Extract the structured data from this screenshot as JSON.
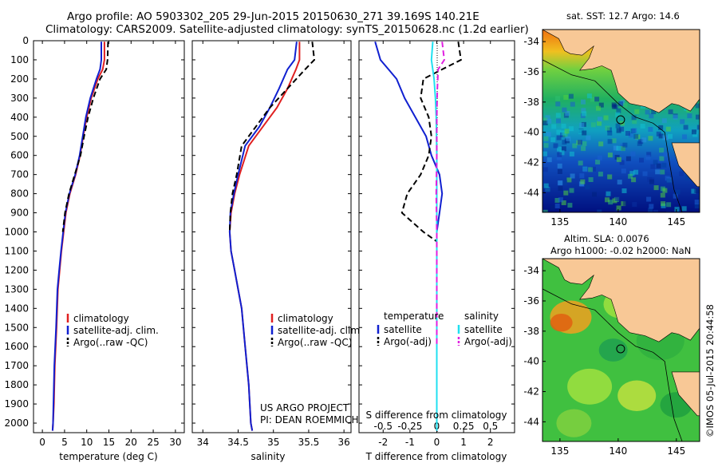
{
  "header": {
    "line1": "Argo profile: AO 5903302_205 29-Jun-2015 20150630_271 39.169S 140.21E",
    "line2": "Climatology: CARS2009. Satellite-adjusted climatology: synTS_20150628.nc (1.2d earlier)"
  },
  "credits": {
    "project": "US ARGO PROJECT",
    "pi": "PI: DEAN ROEMMICH",
    "watermark": "©IMOS 05-Jul-2015 20:44:58"
  },
  "colors": {
    "climatology": "#e02020",
    "satellite": "#1020d0",
    "argo": "#000000",
    "sal_satellite": "#20e0f0",
    "sal_argo": "#e020e0",
    "land": "#f8c896"
  },
  "chart_data": [
    {
      "type": "line",
      "name": "temperature",
      "xlabel": "temperature (deg C)",
      "ylabel": "",
      "xlim": [
        -2,
        32
      ],
      "ylim": [
        2050,
        0
      ],
      "xticks": [
        0,
        5,
        10,
        15,
        20,
        25,
        30
      ],
      "yticks": [
        0,
        100,
        200,
        300,
        400,
        500,
        600,
        700,
        800,
        900,
        1000,
        1100,
        1200,
        1300,
        1400,
        1500,
        1600,
        1700,
        1800,
        1900,
        2000
      ],
      "legend": [
        "climatology",
        "satellite-adj. clim.",
        "Argo(..raw -QC)"
      ],
      "legend_position": "lower-center",
      "series": [
        {
          "name": "climatology",
          "color": "red",
          "style": "solid",
          "x": [
            14.0,
            14.0,
            13.6,
            12.5,
            11.0,
            10.0,
            9.2,
            8.5,
            7.5,
            6.2,
            5.3,
            4.8,
            4.3,
            3.9,
            3.5,
            3.2,
            2.8,
            2.6,
            2.4,
            2.3
          ],
          "y": [
            5,
            100,
            150,
            200,
            300,
            400,
            500,
            600,
            700,
            800,
            900,
            1000,
            1100,
            1200,
            1300,
            1500,
            1700,
            1900,
            2000,
            2040
          ]
        },
        {
          "name": "satellite-adj. clim.",
          "color": "blue",
          "style": "solid",
          "x": [
            13.3,
            13.3,
            13.0,
            12.2,
            10.8,
            9.8,
            9.1,
            8.4,
            7.4,
            6.1,
            5.2,
            4.7,
            4.2,
            3.8,
            3.4,
            3.1,
            2.7,
            2.5,
            2.4,
            2.3
          ],
          "y": [
            5,
            100,
            150,
            200,
            300,
            400,
            500,
            600,
            700,
            800,
            900,
            1000,
            1100,
            1200,
            1300,
            1500,
            1700,
            1900,
            2000,
            2040
          ]
        },
        {
          "name": "Argo(..raw -QC)",
          "color": "black",
          "style": "dashed",
          "x": [
            14.8,
            14.7,
            14.4,
            13.0,
            11.5,
            10.3,
            9.4,
            8.6,
            7.3,
            6.0,
            5.1,
            4.6
          ],
          "y": [
            5,
            100,
            150,
            200,
            300,
            400,
            500,
            600,
            700,
            800,
            900,
            1000
          ]
        }
      ]
    },
    {
      "type": "line",
      "name": "salinity",
      "xlabel": "salinity",
      "ylabel": "",
      "xlim": [
        33.85,
        36.1
      ],
      "ylim": [
        2050,
        0
      ],
      "xticks": [
        34,
        34.5,
        35,
        35.5,
        36
      ],
      "legend": [
        "climatology",
        "satellite-adj. clim.",
        "Argo(..raw -QC)"
      ],
      "legend_position": "lower-center",
      "series": [
        {
          "name": "climatology",
          "color": "red",
          "style": "solid",
          "x": [
            35.37,
            35.37,
            35.32,
            35.2,
            35.05,
            34.85,
            34.65,
            34.52,
            34.45,
            34.4,
            34.38,
            34.4,
            34.45,
            34.5,
            34.55,
            34.6,
            34.65,
            34.68,
            34.7
          ],
          "y": [
            5,
            100,
            150,
            250,
            350,
            450,
            550,
            700,
            800,
            900,
            1000,
            1100,
            1200,
            1300,
            1400,
            1600,
            1800,
            2000,
            2040
          ]
        },
        {
          "name": "satellite-adj. clim.",
          "color": "blue",
          "style": "solid",
          "x": [
            35.33,
            35.3,
            35.2,
            35.08,
            34.95,
            34.8,
            34.6,
            34.5,
            34.44,
            34.39,
            34.38,
            34.4,
            34.45,
            34.5,
            34.55,
            34.6,
            34.65,
            34.68,
            34.7
          ],
          "y": [
            5,
            100,
            150,
            250,
            350,
            450,
            550,
            700,
            800,
            900,
            1000,
            1100,
            1200,
            1300,
            1400,
            1600,
            1800,
            2000,
            2040
          ]
        },
        {
          "name": "Argo(..raw -QC)",
          "color": "black",
          "style": "dashed",
          "x": [
            35.55,
            35.58,
            35.45,
            35.2,
            34.95,
            34.75,
            34.55,
            34.48,
            34.42,
            34.39,
            34.38
          ],
          "y": [
            5,
            100,
            150,
            250,
            350,
            450,
            550,
            700,
            800,
            900,
            1000
          ]
        }
      ]
    },
    {
      "type": "line",
      "name": "difference",
      "xlabel": "T difference from climatology",
      "xlabel_top": "S difference from climatology",
      "ylabel": "",
      "xlim": [
        -2.9,
        2.9
      ],
      "ylim": [
        2050,
        0
      ],
      "xticks": [
        -2,
        -1,
        0,
        1,
        2
      ],
      "xticks_top": [
        "-0.5",
        "-0.25",
        "0",
        "0.25",
        "0.5"
      ],
      "legend_left_title": "temperature",
      "legend_right_title": "salinity",
      "legend": [
        "satellite",
        "Argo(-adj)",
        "satellite",
        "Argo(-adj)"
      ],
      "legend_position": "lower-center",
      "series": [
        {
          "name": "temperature satellite",
          "color": "blue",
          "style": "solid",
          "x": [
            -2.3,
            -2.1,
            -1.8,
            -1.5,
            -1.2,
            -0.8,
            -0.4,
            -0.2,
            0.1,
            0.2,
            0.1,
            0.0,
            0.0,
            0.0,
            0.0
          ],
          "y": [
            5,
            100,
            150,
            200,
            300,
            400,
            500,
            600,
            700,
            800,
            900,
            1000,
            1200,
            1600,
            2040
          ]
        },
        {
          "name": "temperature Argo(-adj)",
          "color": "black",
          "style": "dashed",
          "x": [
            0.8,
            0.9,
            0.2,
            -0.5,
            -0.6,
            -0.3,
            -0.2,
            -0.3,
            -0.6,
            -1.1,
            -1.3,
            -0.5,
            0.0
          ],
          "y": [
            5,
            100,
            150,
            200,
            300,
            400,
            500,
            600,
            700,
            800,
            900,
            1000,
            1050
          ]
        },
        {
          "name": "salinity satellite",
          "color": "cyan",
          "style": "solid",
          "x": [
            -0.15,
            -0.2,
            -0.1,
            -0.05,
            -0.02,
            0.0,
            0.0,
            0.0,
            0.0
          ],
          "y": [
            5,
            100,
            200,
            300,
            400,
            600,
            1000,
            1600,
            2040
          ]
        },
        {
          "name": "salinity Argo(-adj)",
          "color": "magenta",
          "style": "dashed",
          "x": [
            0.2,
            0.28,
            0.05,
            0.02,
            0.0,
            0.0,
            -0.02,
            0.0,
            0.0
          ],
          "y": [
            5,
            100,
            150,
            250,
            400,
            600,
            800,
            1000,
            1600
          ]
        }
      ]
    },
    {
      "type": "heatmap",
      "name": "sst_map",
      "title": "sat. SST: 12.7 Argo: 14.6",
      "xticks": [
        135,
        140,
        145
      ],
      "yticks": [
        -34,
        -36,
        -38,
        -40,
        -42,
        -44
      ],
      "xlim": [
        133.5,
        147
      ],
      "ylim": [
        -45.3,
        -33.2
      ],
      "profile_marker": {
        "lon": 140.21,
        "lat": -39.169
      }
    },
    {
      "type": "heatmap",
      "name": "sla_map",
      "title": "Altim. SLA: 0.0076",
      "subtitle": "Argo h1000: -0.02 h2000: NaN",
      "xticks": [
        135,
        140,
        145
      ],
      "yticks": [
        -34,
        -36,
        -38,
        -40,
        -42,
        -44
      ],
      "xlim": [
        133.5,
        147
      ],
      "ylim": [
        -45.3,
        -33.2
      ],
      "profile_marker": {
        "lon": 140.21,
        "lat": -39.169
      }
    }
  ]
}
